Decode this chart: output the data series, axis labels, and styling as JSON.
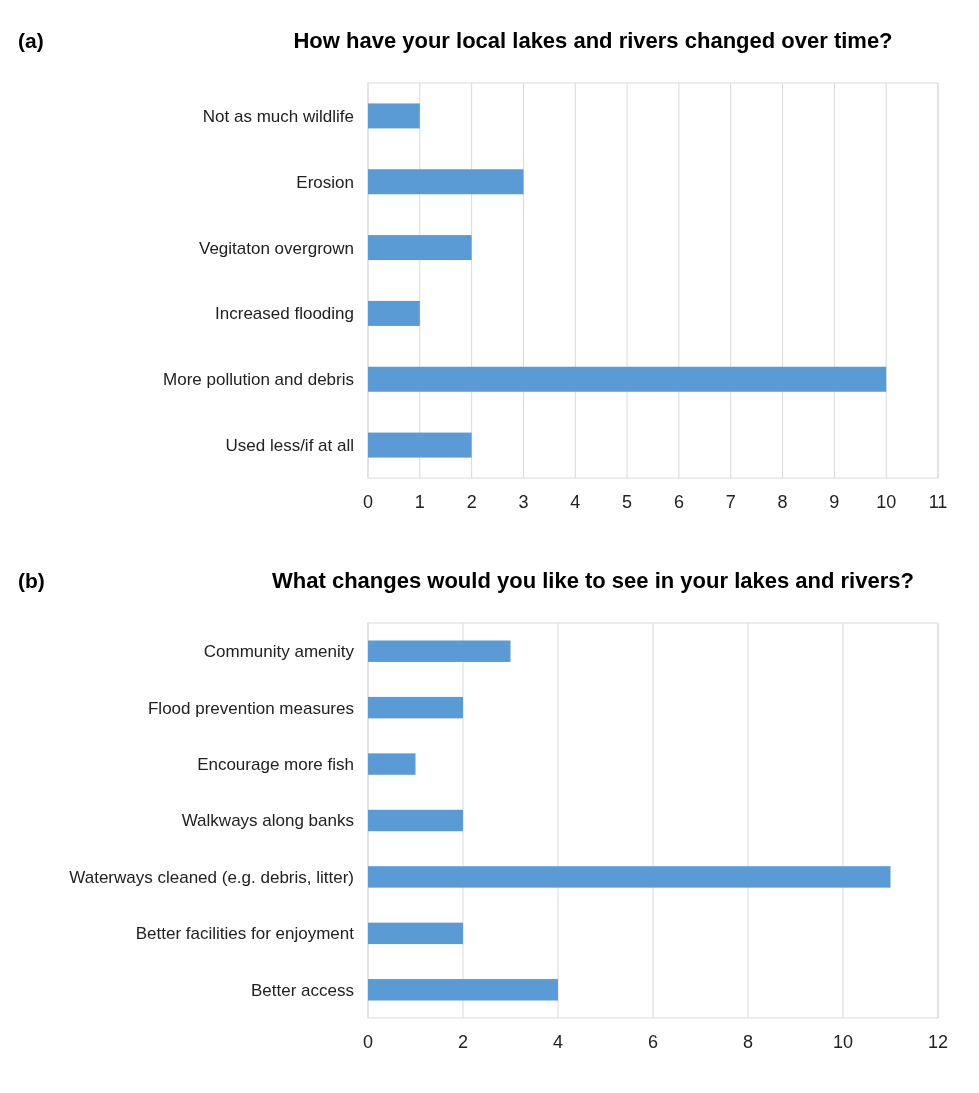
{
  "chart_data": [
    {
      "type": "bar",
      "orientation": "horizontal",
      "title": "How have your local lakes and rivers changed over time?",
      "annotations": [
        "(a)"
      ],
      "categories": [
        "Not as much wildlife",
        "Erosion",
        "Vegitaton overgrown",
        "Increased flooding",
        "More pollution and debris",
        "Used less/if at all"
      ],
      "values": [
        1,
        3,
        2,
        1,
        10,
        2
      ],
      "color": "#5b9bd5",
      "xlim": [
        0,
        11
      ],
      "xticks": [
        0,
        1,
        2,
        3,
        4,
        5,
        6,
        7,
        8,
        9,
        10,
        11
      ],
      "grid": "x"
    },
    {
      "type": "bar",
      "orientation": "horizontal",
      "title": "What changes would you like to see in your lakes and rivers?",
      "annotations": [
        "(b)"
      ],
      "categories": [
        "Community amenity",
        "Flood prevention measures",
        "Encourage more fish",
        "Walkways along banks",
        "Waterways cleaned (e.g. debris, litter)",
        "Better facilities for enjoyment",
        "Better access"
      ],
      "values": [
        3,
        2,
        1,
        2,
        11,
        2,
        4
      ],
      "color": "#5b9bd5",
      "xlim": [
        0,
        12
      ],
      "xticks": [
        0,
        2,
        4,
        6,
        8,
        10,
        12
      ],
      "grid": "x"
    }
  ]
}
